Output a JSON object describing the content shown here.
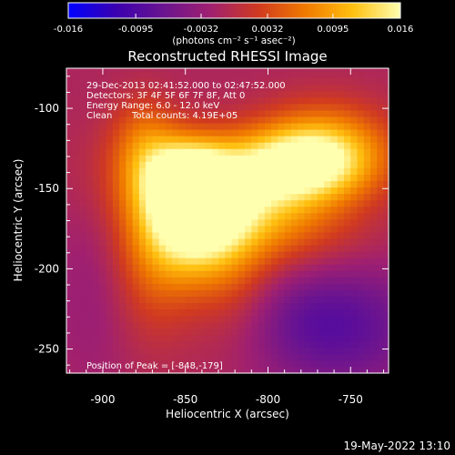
{
  "colors": {
    "background": "#000000",
    "text": "#ffffff",
    "colorbar_stops": [
      "#0000ff",
      "#3a00b0",
      "#6a1490",
      "#a02070",
      "#d03a20",
      "#f07a00",
      "#ffc010",
      "#ffffb0"
    ]
  },
  "colorbar": {
    "tick_labels": [
      "-0.016",
      "-0.0095",
      "-0.0032",
      "0.0032",
      "0.0095",
      "0.016"
    ],
    "unit_label": "(photons cm⁻² s⁻¹ asec⁻²)",
    "range": [
      -0.016,
      0.016
    ]
  },
  "chart_data": {
    "type": "heatmap",
    "title": "Reconstructed RHESSI Image",
    "xlabel": "Heliocentric X (arcsec)",
    "ylabel": "Heliocentric Y (arcsec)",
    "x_ticks": [
      "-900",
      "-850",
      "-800",
      "-750"
    ],
    "y_ticks": [
      "-100",
      "-150",
      "-200",
      "-250"
    ],
    "xlim": [
      -922,
      -727
    ],
    "ylim": [
      -265,
      -75
    ],
    "annotations": [
      "29-Dec-2013 02:41:52.000 to 02:47:52.000",
      "Detectors: 3F 4F 5F 6F 7F 8F, Att 0",
      "Energy Range: 6.0 - 12.0 keV",
      "Clean",
      "Total counts: 4.19E+05"
    ],
    "peak_label": "Position of Peak = [-848,-179]",
    "peak_position": [
      -848,
      -179
    ],
    "blobs": [
      {
        "x": -818,
        "y": -160,
        "sx": 45,
        "sy": 22,
        "rot": -15,
        "amp": 0.011
      },
      {
        "x": -845,
        "y": -170,
        "sx": 22,
        "sy": 25,
        "rot": 0,
        "amp": 0.016
      },
      {
        "x": -848,
        "y": -142,
        "sx": 18,
        "sy": 16,
        "rot": 0,
        "amp": 0.012
      },
      {
        "x": -785,
        "y": -135,
        "sx": 30,
        "sy": 16,
        "rot": 0,
        "amp": 0.013
      },
      {
        "x": -765,
        "y": -125,
        "sx": 28,
        "sy": 20,
        "rot": 0,
        "amp": 0.01
      },
      {
        "x": -875,
        "y": -120,
        "sx": 14,
        "sy": 20,
        "rot": 0,
        "amp": 0.006
      },
      {
        "x": -870,
        "y": -195,
        "sx": 18,
        "sy": 35,
        "rot": 0,
        "amp": 0.005
      },
      {
        "x": -820,
        "y": -210,
        "sx": 20,
        "sy": 30,
        "rot": 0,
        "amp": 0.004
      },
      {
        "x": -905,
        "y": -215,
        "sx": 18,
        "sy": 40,
        "rot": 0,
        "amp": -0.002
      },
      {
        "x": -790,
        "y": -230,
        "sx": 30,
        "sy": 25,
        "rot": 0,
        "amp": -0.003
      },
      {
        "x": -750,
        "y": -235,
        "sx": 35,
        "sy": 30,
        "rot": 0,
        "amp": -0.006
      }
    ]
  },
  "footer": {
    "timestamp": "19-May-2022 13:10"
  }
}
